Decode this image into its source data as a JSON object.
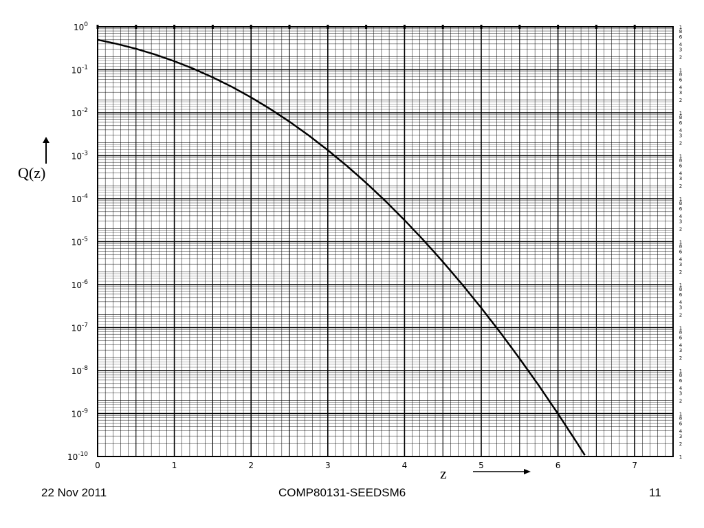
{
  "chart_data": {
    "type": "line",
    "ylog": true,
    "xlim": [
      0,
      7.5
    ],
    "ylim": [
      1e-10,
      1
    ],
    "x_ticks": [
      0,
      1,
      2,
      3,
      4,
      5,
      6,
      7
    ],
    "x_tick_labels": [
      "0",
      "1",
      "2",
      "3",
      "4",
      "5",
      "6",
      "7"
    ],
    "y_ticks": [
      {
        "base": "10",
        "exp": "0"
      },
      {
        "base": "10",
        "exp": "-1"
      },
      {
        "base": "10",
        "exp": "-2"
      },
      {
        "base": "10",
        "exp": "-3"
      },
      {
        "base": "10",
        "exp": "-4"
      },
      {
        "base": "10",
        "exp": "-5"
      },
      {
        "base": "10",
        "exp": "-6"
      },
      {
        "base": "10",
        "exp": "-7"
      },
      {
        "base": "10",
        "exp": "-8"
      },
      {
        "base": "10",
        "exp": "-9"
      },
      {
        "base": "10",
        "exp": "-10"
      }
    ],
    "right_minor_labels": [
      "1",
      "8",
      "6",
      "4",
      "3",
      "2"
    ],
    "xlabel": "z",
    "ylabel": "Q(z)",
    "grid": true,
    "series": [
      {
        "x": [
          0,
          0.25,
          0.5,
          0.75,
          1.0,
          1.25,
          1.5,
          1.75,
          2.0,
          2.25,
          2.5,
          2.75,
          3.0,
          3.25,
          3.5,
          3.75,
          4.0,
          4.25,
          4.5,
          4.75,
          5.0,
          5.25,
          5.5,
          5.75,
          6.0,
          6.25,
          6.35
        ],
        "y": [
          0.5,
          0.4013,
          0.3085,
          0.2266,
          0.1587,
          0.1056,
          0.0668,
          0.0401,
          0.02275,
          0.01222,
          0.00621,
          0.00298,
          0.00135,
          0.000577,
          0.000233,
          8.84e-05,
          3.17e-05,
          1.07e-05,
          3.4e-06,
          1.02e-06,
          2.87e-07,
          7.6e-08,
          1.9e-08,
          4.5e-09,
          9.9e-10,
          2.05e-10,
          1.07e-10
        ]
      }
    ]
  },
  "footer": {
    "date": "22 Nov 2011",
    "code": "COMP80131-SEEDSM6",
    "page": "11"
  }
}
